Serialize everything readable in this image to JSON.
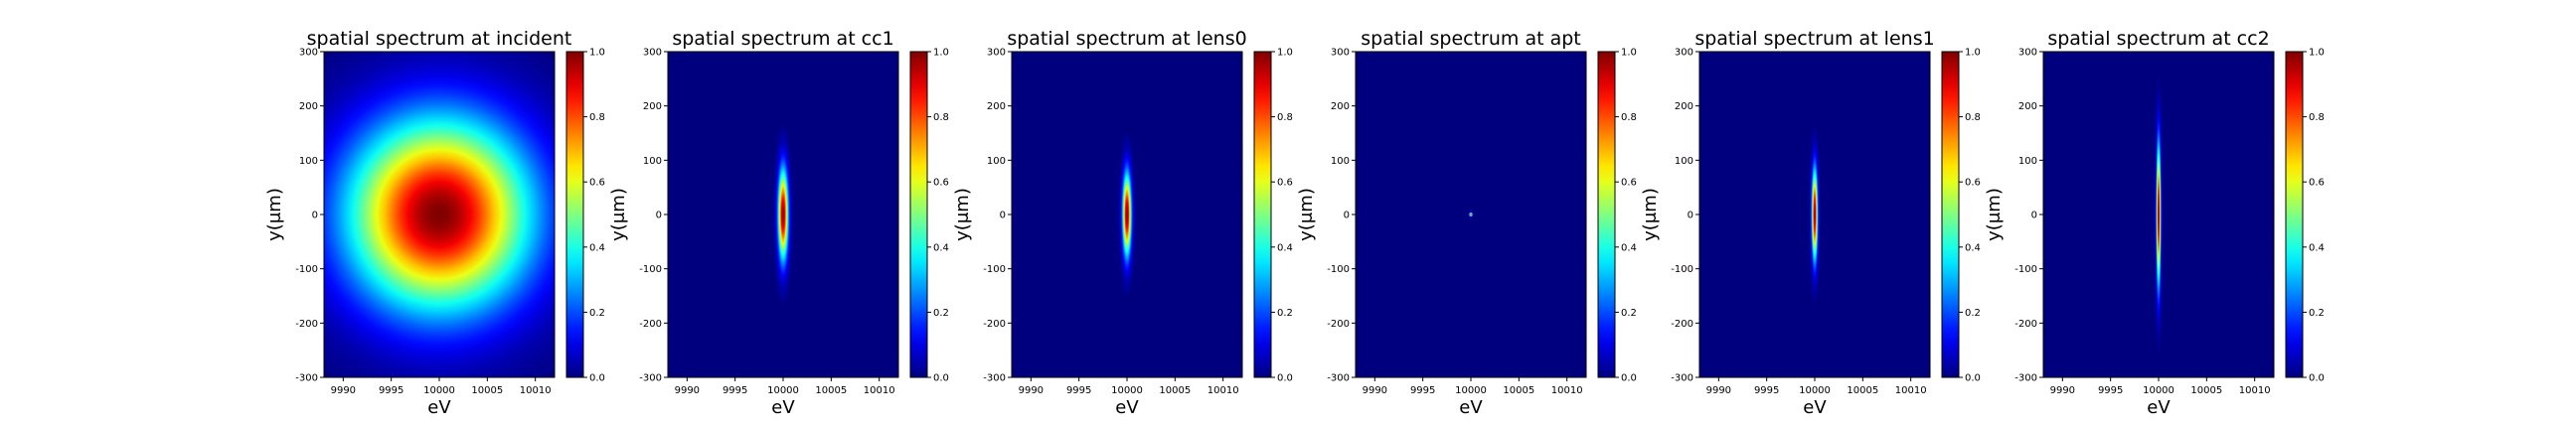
{
  "chart_data": [
    {
      "type": "heatmap",
      "title": "spatial spectrum at incident",
      "xlabel": "eV",
      "ylabel": "y(μm)",
      "xlim": [
        9988,
        10012
      ],
      "ylim": [
        -300,
        300
      ],
      "x_ticks": [
        9990,
        9995,
        10000,
        10005,
        10010
      ],
      "y_ticks": [
        300,
        200,
        100,
        0,
        -100,
        -200,
        -300
      ],
      "colormap": "jet",
      "colorbar": {
        "range": [
          0.0,
          1.0
        ],
        "ticks": [
          "0.0",
          "0.2",
          "0.4",
          "0.6",
          "0.8",
          "1.0"
        ]
      },
      "peak": {
        "x": 10000,
        "y": 0,
        "value": 1.0
      },
      "sigma_x_eV": 6.5,
      "sigma_y_um": 120
    },
    {
      "type": "heatmap",
      "title": "spatial spectrum at cc1",
      "xlabel": "eV",
      "ylabel": "y(μm)",
      "xlim": [
        9988,
        10012
      ],
      "ylim": [
        -300,
        300
      ],
      "x_ticks": [
        9990,
        9995,
        10000,
        10005,
        10010
      ],
      "y_ticks": [
        300,
        200,
        100,
        0,
        -100,
        -200,
        -300
      ],
      "colormap": "jet",
      "colorbar": {
        "range": [
          0.0,
          1.0
        ],
        "ticks": [
          "0.0",
          "0.2",
          "0.4",
          "0.6",
          "0.8",
          "1.0"
        ]
      },
      "peak": {
        "x": 10000,
        "y": 0,
        "value": 1.0
      },
      "sigma_x_eV": 0.35,
      "sigma_y_um": 55
    },
    {
      "type": "heatmap",
      "title": "spatial spectrum at lens0",
      "xlabel": "eV",
      "ylabel": "y(μm)",
      "xlim": [
        9988,
        10012
      ],
      "ylim": [
        -300,
        300
      ],
      "x_ticks": [
        9990,
        9995,
        10000,
        10005,
        10010
      ],
      "y_ticks": [
        300,
        200,
        100,
        0,
        -100,
        -200,
        -300
      ],
      "colormap": "jet",
      "colorbar": {
        "range": [
          0.0,
          1.0
        ],
        "ticks": [
          "0.0",
          "0.2",
          "0.4",
          "0.6",
          "0.8",
          "1.0"
        ]
      },
      "peak": {
        "x": 10000,
        "y": 0,
        "value": 1.0
      },
      "sigma_x_eV": 0.3,
      "sigma_y_um": 50
    },
    {
      "type": "heatmap",
      "title": "spatial spectrum at apt",
      "xlabel": "eV",
      "ylabel": "y(μm)",
      "xlim": [
        9988,
        10012
      ],
      "ylim": [
        -300,
        300
      ],
      "x_ticks": [
        9990,
        9995,
        10000,
        10005,
        10010
      ],
      "y_ticks": [
        300,
        200,
        100,
        0,
        -100,
        -200,
        -300
      ],
      "colormap": "jet",
      "colorbar": {
        "range": [
          0.0,
          1.0
        ],
        "ticks": [
          "0.0",
          "0.2",
          "0.4",
          "0.6",
          "0.8",
          "1.0"
        ]
      },
      "peak": {
        "x": 10000,
        "y": 0,
        "value": 1.0
      },
      "sigma_x_eV": 0.1,
      "sigma_y_um": 2
    },
    {
      "type": "heatmap",
      "title": "spatial spectrum at lens1",
      "xlabel": "eV",
      "ylabel": "y(μm)",
      "xlim": [
        9988,
        10012
      ],
      "ylim": [
        -300,
        300
      ],
      "x_ticks": [
        9990,
        9995,
        10000,
        10005,
        10010
      ],
      "y_ticks": [
        300,
        200,
        100,
        0,
        -100,
        -200,
        -300
      ],
      "colormap": "jet",
      "colorbar": {
        "range": [
          0.0,
          1.0
        ],
        "ticks": [
          "0.0",
          "0.2",
          "0.4",
          "0.6",
          "0.8",
          "1.0"
        ]
      },
      "peak": {
        "x": 10000,
        "y": 0,
        "value": 1.0
      },
      "sigma_x_eV": 0.2,
      "sigma_y_um": 55
    },
    {
      "type": "heatmap",
      "title": "spatial spectrum at cc2",
      "xlabel": "eV",
      "ylabel": "y(μm)",
      "xlim": [
        9988,
        10012
      ],
      "ylim": [
        -300,
        300
      ],
      "x_ticks": [
        9990,
        9995,
        10000,
        10005,
        10010
      ],
      "y_ticks": [
        300,
        200,
        100,
        0,
        -100,
        -200,
        -300
      ],
      "colormap": "jet",
      "colorbar": {
        "range": [
          0.0,
          1.0
        ],
        "ticks": [
          "0.0",
          "0.2",
          "0.4",
          "0.6",
          "0.8",
          "1.0"
        ]
      },
      "peak": {
        "x": 10000,
        "y": 0,
        "value": 1.0
      },
      "sigma_x_eV": 0.15,
      "sigma_y_um": 85
    }
  ]
}
